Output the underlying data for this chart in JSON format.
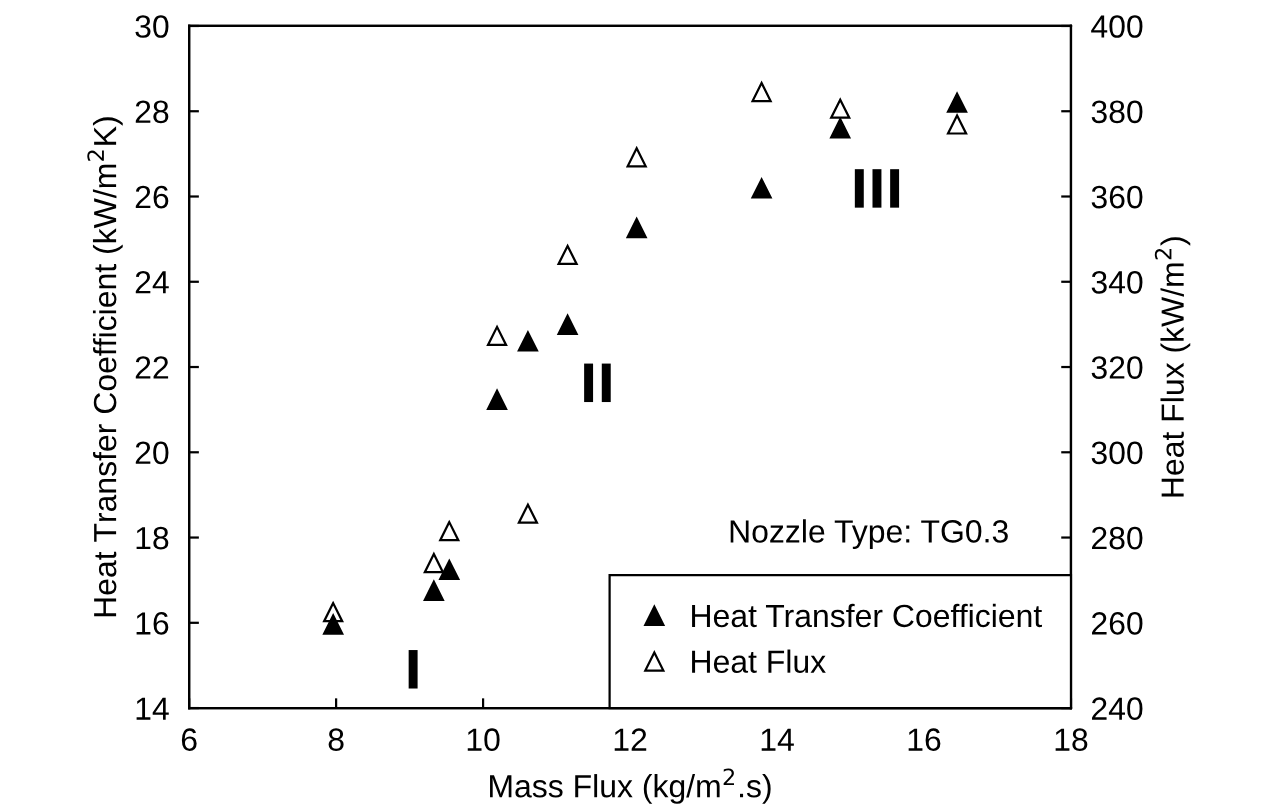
{
  "chart_data": {
    "type": "scatter",
    "xlabel": "Mass Flux (kg/m$^{2}$.s)",
    "ylabel": "Heat Transfer Coefficient (kW/m$^{2}$K)",
    "y2label": "Heat Flux (kW/m$^{2}$)",
    "xlim": [
      6,
      18
    ],
    "xticks": [
      6,
      8,
      10,
      12,
      14,
      16,
      18
    ],
    "ylim": [
      14,
      30
    ],
    "yticks": [
      14,
      16,
      18,
      20,
      22,
      24,
      26,
      28,
      30
    ],
    "y2lim": [
      240,
      400
    ],
    "y2ticks": [
      240,
      260,
      280,
      300,
      320,
      340,
      360,
      380,
      400
    ],
    "marker": "triangle",
    "grid": false,
    "legend": "bottom right",
    "series": [
      {
        "name": "Heat Transfer Coefficient",
        "color": "#000000",
        "x": [
          7.96,
          9.33,
          9.54,
          10.19,
          10.61,
          11.15,
          12.09,
          13.79,
          14.86,
          16.45
        ],
        "values": [
          15.96,
          16.75,
          17.24,
          21.23,
          22.6,
          22.99,
          25.26,
          26.19,
          27.6,
          28.2
        ]
      },
      {
        "name": "Heat Flux",
        "color": "#ffffff",
        "axis": "y2",
        "x": [
          7.96,
          9.33,
          9.54,
          10.19,
          10.61,
          11.15,
          12.09,
          13.79,
          14.86,
          16.45
        ],
        "values": [
          262.5,
          274,
          281.5,
          327.3,
          285.6,
          346.3,
          369.2,
          384.5,
          380.6,
          376.9
        ]
      }
    ],
    "annotations": [
      "I",
      "II",
      "III",
      "Nozzle Type: TG0.3"
    ]
  }
}
